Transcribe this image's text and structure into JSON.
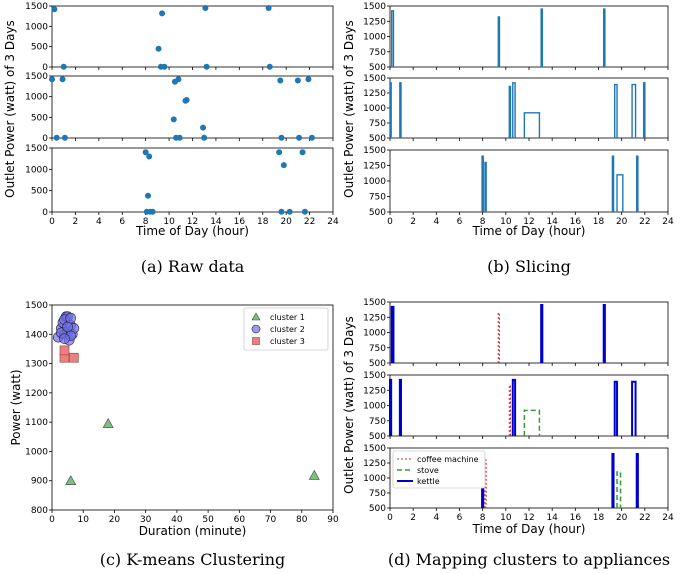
{
  "chart_data": [
    {
      "id": "a",
      "type": "scatter",
      "caption": "(a) Raw data",
      "xlabel": "Time of Day (hour)",
      "ylabel": "Outlet Power (watt) of 3 Days",
      "xlim": [
        0,
        24
      ],
      "xticks": [
        "0",
        "2",
        "4",
        "6",
        "8",
        "10",
        "12",
        "14",
        "16",
        "18",
        "20",
        "22",
        "24"
      ],
      "ylim": [
        0,
        1500
      ],
      "yticks": [
        "0",
        "500",
        "1000",
        "1500"
      ],
      "color": "#1f77b4",
      "panels": [
        {
          "points": [
            [
              0.2,
              1420
            ],
            [
              1.0,
              5
            ],
            [
              9.1,
              450
            ],
            [
              9.4,
              1320
            ],
            [
              9.3,
              5
            ],
            [
              9.6,
              5
            ],
            [
              13.1,
              1450
            ],
            [
              13.2,
              5
            ],
            [
              18.5,
              1450
            ],
            [
              18.6,
              5
            ]
          ]
        },
        {
          "points": [
            [
              0.0,
              1420
            ],
            [
              0.9,
              1420
            ],
            [
              0.4,
              5
            ],
            [
              1.1,
              5
            ],
            [
              10.4,
              450
            ],
            [
              10.5,
              1360
            ],
            [
              10.8,
              1420
            ],
            [
              10.6,
              5
            ],
            [
              10.9,
              5
            ],
            [
              11.4,
              900
            ],
            [
              11.5,
              920
            ],
            [
              12.9,
              250
            ],
            [
              13.0,
              5
            ],
            [
              19.5,
              1390
            ],
            [
              19.6,
              5
            ],
            [
              21.0,
              1390
            ],
            [
              21.1,
              5
            ],
            [
              21.9,
              1420
            ],
            [
              22.2,
              5
            ]
          ]
        },
        {
          "points": [
            [
              8.0,
              1400
            ],
            [
              8.3,
              1300
            ],
            [
              8.2,
              380
            ],
            [
              8.1,
              5
            ],
            [
              8.4,
              5
            ],
            [
              8.6,
              5
            ],
            [
              19.4,
              1400
            ],
            [
              19.8,
              1100
            ],
            [
              19.6,
              5
            ],
            [
              20.3,
              5
            ],
            [
              21.4,
              1400
            ],
            [
              21.6,
              5
            ]
          ]
        }
      ]
    },
    {
      "id": "b",
      "type": "line",
      "caption": "(b) Slicing",
      "xlabel": "Time of Day (hour)",
      "ylabel": "Outlet Power (watt) of 3 Days",
      "xlim": [
        0,
        24
      ],
      "xticks": [
        "0",
        "2",
        "4",
        "6",
        "8",
        "10",
        "12",
        "14",
        "16",
        "18",
        "20",
        "22",
        "24"
      ],
      "ylim": [
        500,
        1500
      ],
      "yticks": [
        "500",
        "750",
        "1000",
        "1250",
        "1500"
      ],
      "color": "#1f77b4",
      "panels": [
        {
          "pulses": [
            [
              0.15,
              0.3,
              1420
            ],
            [
              9.35,
              9.45,
              1320
            ],
            [
              13.05,
              13.15,
              1450
            ],
            [
              18.45,
              18.55,
              1450
            ]
          ]
        },
        {
          "pulses": [
            [
              0.0,
              0.1,
              1420
            ],
            [
              0.85,
              0.95,
              1420
            ],
            [
              10.3,
              10.4,
              1360
            ],
            [
              10.6,
              10.8,
              1420
            ],
            [
              11.6,
              12.9,
              920
            ],
            [
              19.4,
              19.6,
              1390
            ],
            [
              20.9,
              21.2,
              1390
            ],
            [
              21.9,
              22.0,
              1420
            ]
          ]
        },
        {
          "pulses": [
            [
              7.95,
              8.05,
              1400
            ],
            [
              8.2,
              8.3,
              1300
            ],
            [
              19.2,
              19.3,
              1400
            ],
            [
              19.6,
              20.1,
              1100
            ],
            [
              21.3,
              21.4,
              1400
            ]
          ]
        }
      ]
    },
    {
      "id": "c",
      "type": "scatter",
      "caption": "(c) K-means Clustering",
      "xlabel": "Duration (minute)",
      "ylabel": "Power (watt)",
      "xlim": [
        0,
        90
      ],
      "xticks": [
        "0",
        "10",
        "20",
        "30",
        "40",
        "50",
        "60",
        "70",
        "80",
        "90"
      ],
      "ylim": [
        800,
        1500
      ],
      "yticks": [
        "800",
        "900",
        "1000",
        "1100",
        "1200",
        "1300",
        "1400",
        "1500"
      ],
      "legend_position": "top-right",
      "series": [
        {
          "name": "cluster 1",
          "marker": "triangle",
          "color": "#7fbf7f",
          "points": [
            [
              6,
              900
            ],
            [
              18,
              1095
            ],
            [
              84,
              918
            ]
          ]
        },
        {
          "name": "cluster 2",
          "marker": "circle",
          "color": "#6f6fe8",
          "points": [
            [
              2,
              1390
            ],
            [
              3,
              1420
            ],
            [
              3.5,
              1440
            ],
            [
              4,
              1400
            ],
            [
              4.5,
              1460
            ],
            [
              5,
              1410
            ],
            [
              5.5,
              1380
            ],
            [
              6,
              1430
            ],
            [
              6.5,
              1400
            ],
            [
              7,
              1420
            ],
            [
              5,
              1460
            ],
            [
              4,
              1450
            ],
            [
              6,
              1395
            ],
            [
              3,
              1405
            ],
            [
              5,
              1425
            ],
            [
              4,
              1385
            ],
            [
              6,
              1455
            ]
          ]
        },
        {
          "name": "cluster 3",
          "marker": "square",
          "color": "#ef7f7f",
          "points": [
            [
              4,
              1320
            ],
            [
              4,
              1345
            ],
            [
              7,
              1320
            ]
          ]
        }
      ]
    },
    {
      "id": "d",
      "type": "line",
      "caption": "(d) Mapping clusters to appliances",
      "xlabel": "Time of Day (hour)",
      "ylabel": "Outlet Power (watt) of 3 Days",
      "xlim": [
        0,
        24
      ],
      "xticks": [
        "0",
        "2",
        "4",
        "6",
        "8",
        "10",
        "12",
        "14",
        "16",
        "18",
        "20",
        "22",
        "24"
      ],
      "ylim": [
        500,
        1500
      ],
      "yticks": [
        "500",
        "750",
        "1000",
        "1250",
        "1500"
      ],
      "legend_position": "upper-left of bottom panel",
      "series_styles": [
        {
          "name": "coffee machine",
          "color": "#d62728",
          "dash": "2,2",
          "width": 1
        },
        {
          "name": "stove",
          "color": "#2ca02c",
          "dash": "5,3",
          "width": 1.5
        },
        {
          "name": "kettle",
          "color": "#0000cc",
          "dash": "",
          "width": 2
        }
      ],
      "panels": [
        {
          "pulses": [
            [
              0.15,
              0.3,
              1420,
              "kettle"
            ],
            [
              9.35,
              9.45,
              1320,
              "coffee machine"
            ],
            [
              13.05,
              13.15,
              1450,
              "kettle"
            ],
            [
              18.45,
              18.55,
              1450,
              "kettle"
            ]
          ]
        },
        {
          "pulses": [
            [
              0.0,
              0.1,
              1420,
              "kettle"
            ],
            [
              0.85,
              0.95,
              1420,
              "kettle"
            ],
            [
              10.3,
              10.4,
              1330,
              "coffee machine"
            ],
            [
              10.6,
              10.8,
              1420,
              "kettle"
            ],
            [
              11.6,
              12.9,
              920,
              "stove"
            ],
            [
              19.4,
              19.6,
              1390,
              "kettle"
            ],
            [
              20.9,
              21.2,
              1390,
              "kettle"
            ]
          ]
        },
        {
          "pulses": [
            [
              7.95,
              8.05,
              1400,
              "kettle"
            ],
            [
              8.2,
              8.3,
              1300,
              "coffee machine"
            ],
            [
              19.2,
              19.3,
              1400,
              "kettle"
            ],
            [
              19.6,
              19.9,
              1100,
              "stove"
            ],
            [
              21.3,
              21.4,
              1400,
              "kettle"
            ]
          ]
        }
      ]
    }
  ]
}
